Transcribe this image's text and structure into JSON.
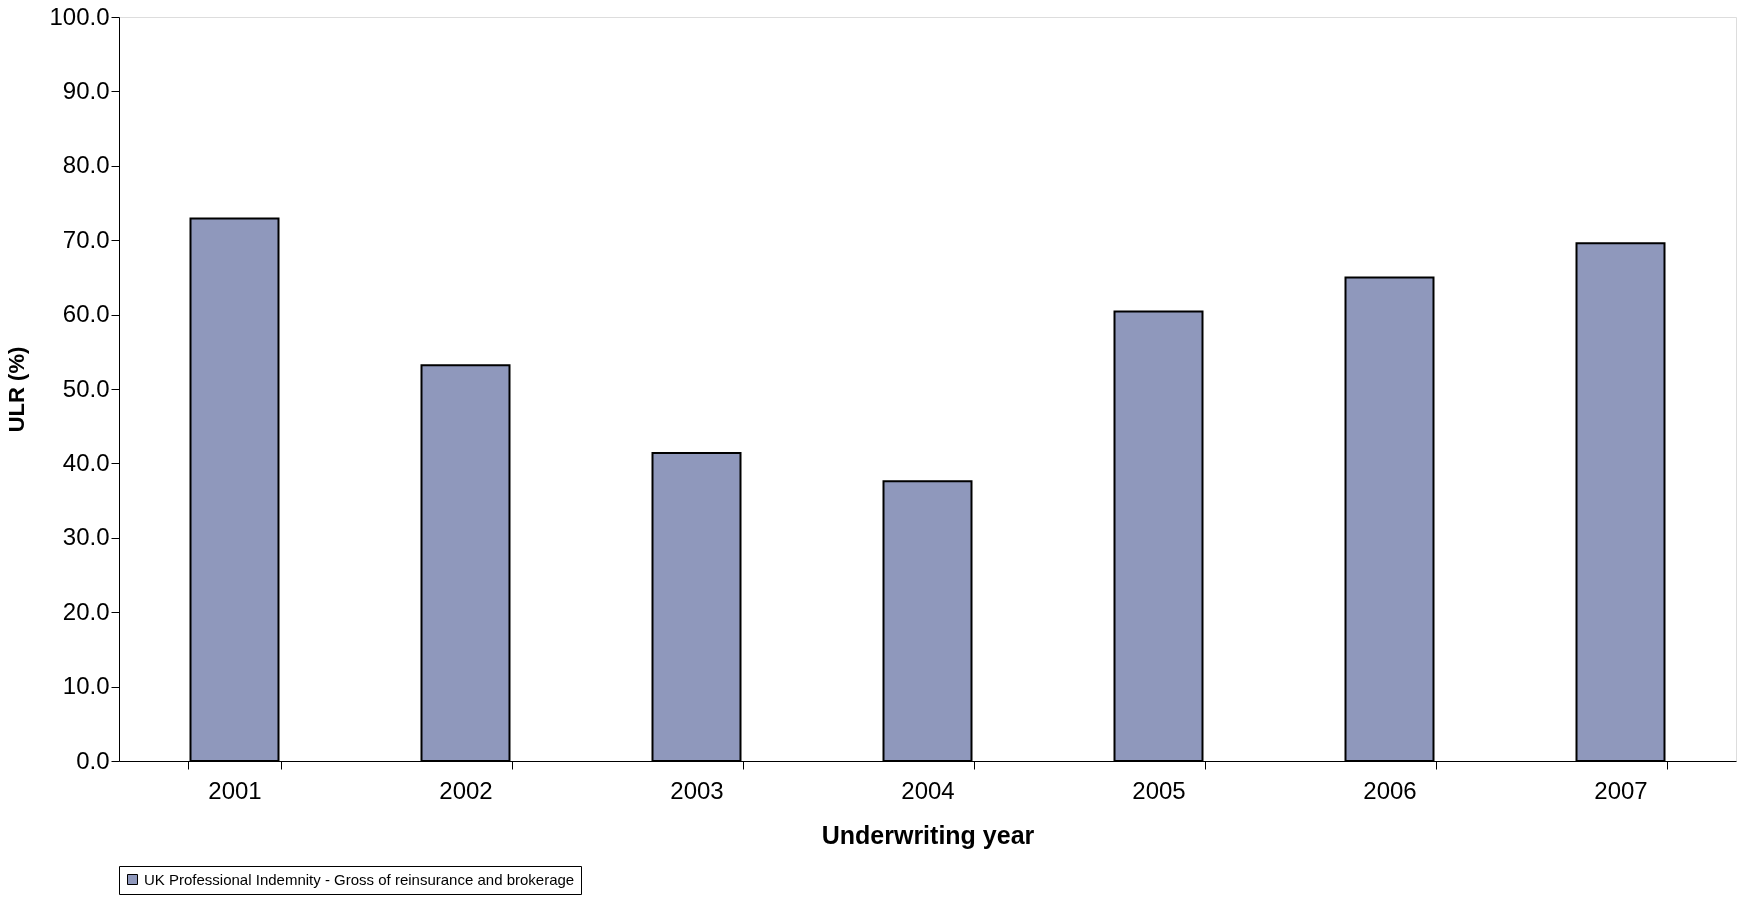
{
  "chart_data": {
    "type": "bar",
    "xlabel": "Underwriting year",
    "ylabel": "ULR (%)",
    "categories": [
      "2001",
      "2002",
      "2003",
      "2004",
      "2005",
      "2006",
      "2007"
    ],
    "series": [
      {
        "name": "UK Professional Indemnity - Gross of reinsurance and brokerage",
        "color": "#8f98bc",
        "values": [
          72.9,
          53.2,
          41.4,
          37.6,
          60.4,
          65.0,
          69.6
        ]
      }
    ],
    "ylim": [
      0,
      100
    ],
    "yticks": [
      {
        "value": 0,
        "label": "0.0"
      },
      {
        "value": 10,
        "label": "10.0"
      },
      {
        "value": 20,
        "label": "20.0"
      },
      {
        "value": 30,
        "label": "30.0"
      },
      {
        "value": 40,
        "label": "40.0"
      },
      {
        "value": 50,
        "label": "50.0"
      },
      {
        "value": 60,
        "label": "60.0"
      },
      {
        "value": 70,
        "label": "70.0"
      },
      {
        "value": 80,
        "label": "80.0"
      },
      {
        "value": 90,
        "label": "90.0"
      },
      {
        "value": 100,
        "label": "100.0"
      }
    ],
    "grid": false,
    "legend": "bottom"
  }
}
